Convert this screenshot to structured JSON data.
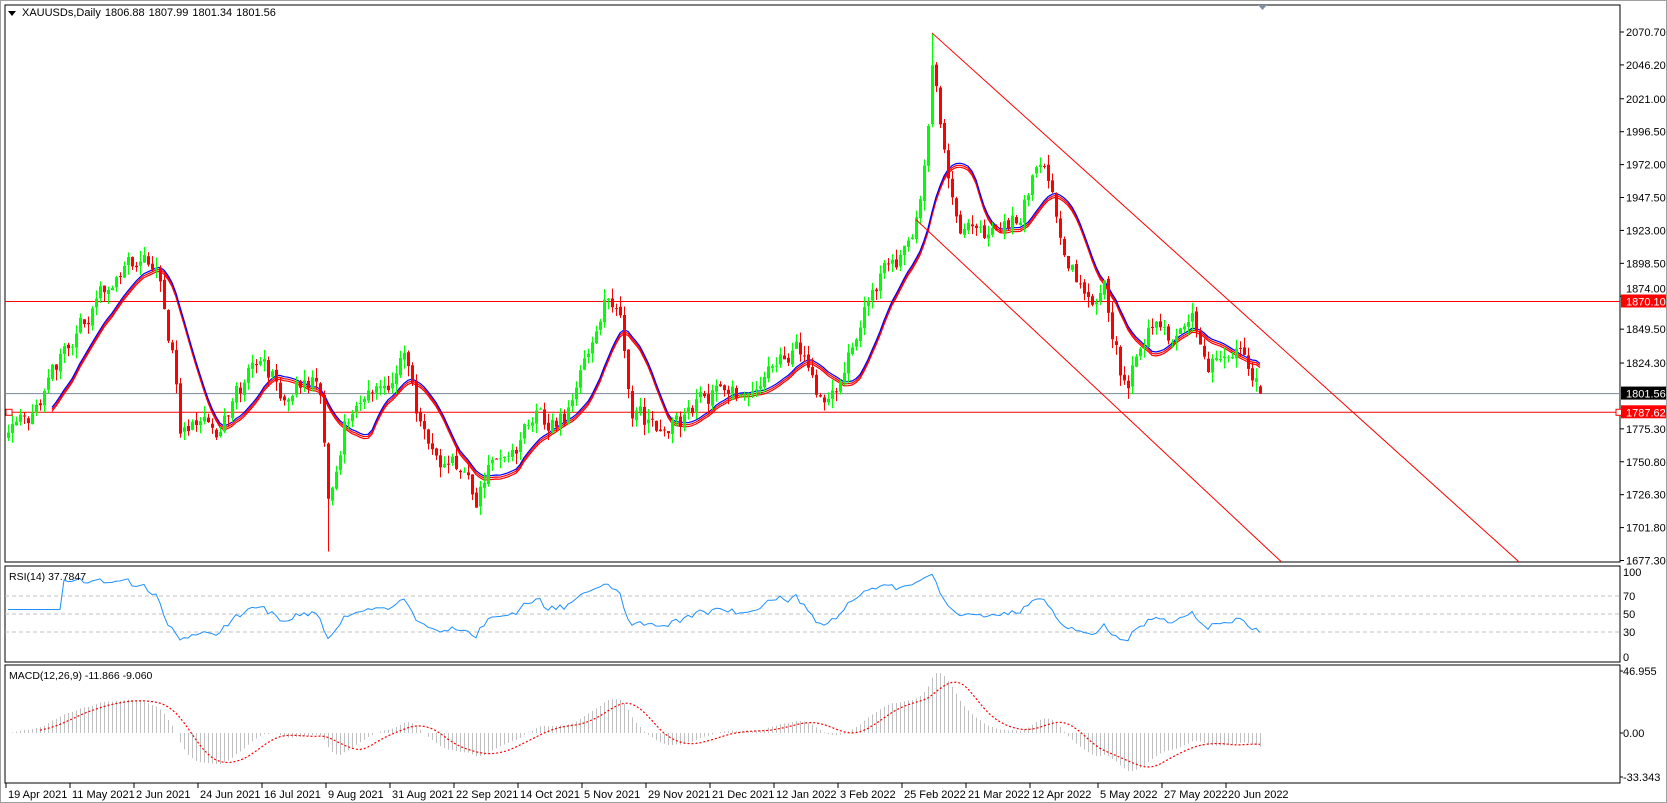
{
  "chart_data": {
    "type": "candlestick",
    "header": {
      "symbol_label": "XAUUSDs,Daily",
      "open": "1806.88",
      "high": "1807.99",
      "low": "1801.34",
      "close": "1801.56"
    },
    "last_bar": {
      "date": "2022-06-30",
      "open": 1806.88,
      "high": 1807.99,
      "low": 1801.34,
      "close": 1801.56
    },
    "colors": {
      "bull": "#00ff00",
      "bear": "#ff0000",
      "ma_main": "#0000ff",
      "ma_band": "#ff0000",
      "rsi": "#1e90ff",
      "macd_hist": "#c0c0c0",
      "macd_signal": "#ff0000",
      "grid_level": "#c0c0c0"
    },
    "price_axis": {
      "range": [
        1677.3,
        2070.7
      ],
      "ticks": [
        "2070.70",
        "2046.20",
        "2021.00",
        "1996.50",
        "1972.00",
        "1947.50",
        "1923.00",
        "1898.50",
        "1874.00",
        "1849.50",
        "1824.30",
        "1775.30",
        "1750.80",
        "1726.30",
        "1701.80",
        "1677.30"
      ]
    },
    "date_axis": {
      "ticks": [
        {
          "label": "19 Apr 2021",
          "date": "2021-04-19"
        },
        {
          "label": "11 May 2021",
          "date": "2021-05-11"
        },
        {
          "label": "2 Jun 2021",
          "date": "2021-06-02"
        },
        {
          "label": "24 Jun 2021",
          "date": "2021-06-24"
        },
        {
          "label": "16 Jul 2021",
          "date": "2021-07-16"
        },
        {
          "label": "9 Aug 2021",
          "date": "2021-08-09"
        },
        {
          "label": "31 Aug 2021",
          "date": "2021-08-31"
        },
        {
          "label": "22 Sep 2021",
          "date": "2021-09-22"
        },
        {
          "label": "14 Oct 2021",
          "date": "2021-10-14"
        },
        {
          "label": "5 Nov 2021",
          "date": "2021-11-05"
        },
        {
          "label": "29 Nov 2021",
          "date": "2021-11-29"
        },
        {
          "label": "21 Dec 2021",
          "date": "2021-12-21"
        },
        {
          "label": "12 Jan 2022",
          "date": "2022-01-12"
        },
        {
          "label": "3 Feb 2022",
          "date": "2022-02-03"
        },
        {
          "label": "25 Feb 2022",
          "date": "2022-02-25"
        },
        {
          "label": "21 Mar 2022",
          "date": "2022-03-21"
        },
        {
          "label": "12 Apr 2022",
          "date": "2022-04-12"
        },
        {
          "label": "5 May 2022",
          "date": "2022-05-05"
        },
        {
          "label": "27 May 2022",
          "date": "2022-05-27"
        },
        {
          "label": "20 Jun 2022",
          "date": "2022-06-20"
        }
      ]
    },
    "close_path": [
      [
        "2021-04-19",
        1778
      ],
      [
        "2021-04-27",
        1790
      ],
      [
        "2021-05-07",
        1832
      ],
      [
        "2021-05-18",
        1868
      ],
      [
        "2021-05-27",
        1897
      ],
      [
        "2021-06-02",
        1904
      ],
      [
        "2021-06-10",
        1888
      ],
      [
        "2021-06-16",
        1812
      ],
      [
        "2021-06-17",
        1770
      ],
      [
        "2021-07-01",
        1776
      ],
      [
        "2021-07-07",
        1803
      ],
      [
        "2021-07-14",
        1826
      ],
      [
        "2021-07-22",
        1805
      ],
      [
        "2021-07-30",
        1814
      ],
      [
        "2021-08-05",
        1805
      ],
      [
        "2021-08-06",
        1763
      ],
      [
        "2021-08-09",
        1730
      ],
      [
        "2021-08-13",
        1779
      ],
      [
        "2021-08-23",
        1803
      ],
      [
        "2021-08-31",
        1814
      ],
      [
        "2021-09-03",
        1827
      ],
      [
        "2021-09-08",
        1789
      ],
      [
        "2021-09-16",
        1753
      ],
      [
        "2021-09-23",
        1743
      ],
      [
        "2021-09-29",
        1726
      ],
      [
        "2021-10-05",
        1760
      ],
      [
        "2021-10-12",
        1760
      ],
      [
        "2021-10-19",
        1782
      ],
      [
        "2021-10-29",
        1783
      ],
      [
        "2021-11-08",
        1824
      ],
      [
        "2021-11-12",
        1864
      ],
      [
        "2021-11-16",
        1868
      ],
      [
        "2021-11-18",
        1858
      ],
      [
        "2021-11-23",
        1790
      ],
      [
        "2021-11-30",
        1775
      ],
      [
        "2021-12-10",
        1782
      ],
      [
        "2021-12-16",
        1798
      ],
      [
        "2021-12-22",
        1803
      ],
      [
        "2022-01-03",
        1800
      ],
      [
        "2022-01-13",
        1822
      ],
      [
        "2022-01-19",
        1842
      ],
      [
        "2022-01-27",
        1796
      ],
      [
        "2022-02-03",
        1805
      ],
      [
        "2022-02-11",
        1859
      ],
      [
        "2022-02-18",
        1898
      ],
      [
        "2022-02-24",
        1904
      ],
      [
        "2022-03-02",
        1928
      ],
      [
        "2022-03-07",
        1998
      ],
      [
        "2022-03-08",
        2050
      ],
      [
        "2022-03-11",
        1988
      ],
      [
        "2022-03-16",
        1928
      ],
      [
        "2022-03-22",
        1921
      ],
      [
        "2022-03-28",
        1922
      ],
      [
        "2022-04-01",
        1925
      ],
      [
        "2022-04-07",
        1931
      ],
      [
        "2022-04-13",
        1977
      ],
      [
        "2022-04-19",
        1950
      ],
      [
        "2022-04-25",
        1898
      ],
      [
        "2022-05-02",
        1863
      ],
      [
        "2022-05-06",
        1882
      ],
      [
        "2022-05-12",
        1822
      ],
      [
        "2022-05-16",
        1813
      ],
      [
        "2022-05-19",
        1842
      ],
      [
        "2022-05-25",
        1853
      ],
      [
        "2022-05-31",
        1838
      ],
      [
        "2022-06-07",
        1852
      ],
      [
        "2022-06-13",
        1819
      ],
      [
        "2022-06-17",
        1840
      ],
      [
        "2022-06-23",
        1826
      ],
      [
        "2022-06-28",
        1820
      ],
      [
        "2022-06-30",
        1801.56
      ]
    ],
    "extremes": [
      {
        "date": "2021-08-09",
        "low": 1684
      },
      {
        "date": "2022-03-08",
        "high": 2070
      }
    ],
    "horizontal_lines": [
      {
        "price": 1870.1,
        "label": "1870.10",
        "color": "#ff0000"
      },
      {
        "price": 1787.62,
        "label": "1787.62",
        "color": "#ff0000"
      }
    ],
    "bid_line": {
      "price": 1801.56,
      "label": "1801.56",
      "color": "#778899"
    },
    "trend_lines": [
      {
        "points": [
          [
            "2022-03-08",
            2070
          ],
          [
            "2022-06-30",
            1850
          ]
        ],
        "color": "#ff0000"
      },
      {
        "points": [
          [
            "2022-03-02",
            1931
          ],
          [
            "2022-05-13",
            1786
          ]
        ],
        "color": "#ff0000"
      }
    ],
    "rsi": {
      "label": "RSI(14) 37.7847",
      "period": 14,
      "range": [
        0,
        100
      ],
      "levels": [
        70,
        50,
        30
      ],
      "axis_ticks": [
        "100",
        "70",
        "50",
        "30",
        "0"
      ]
    },
    "macd": {
      "label": "MACD(12,26,9) -11.866 -9.060",
      "fast": 12,
      "slow": 26,
      "signal": 9,
      "range": [
        -33.343,
        46.955
      ],
      "axis_ticks": [
        "46.955",
        "0.00",
        "-33.343"
      ]
    }
  }
}
